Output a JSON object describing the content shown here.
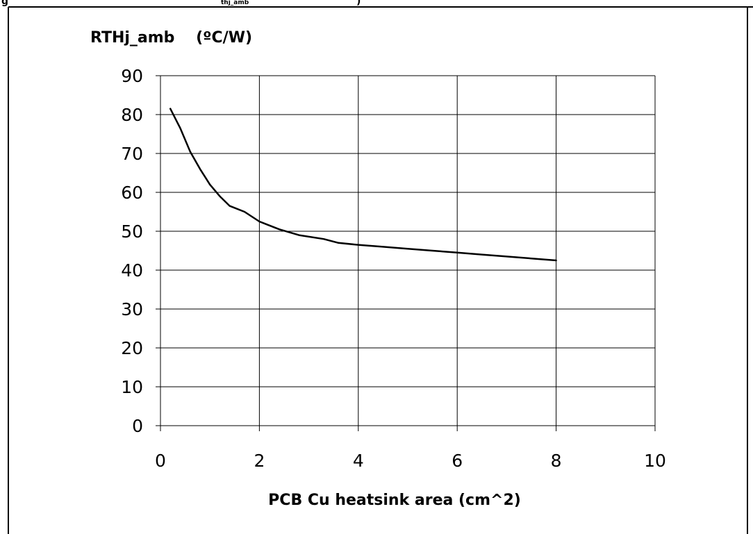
{
  "caption": {
    "prefix": "g",
    "sub": "thj_amb",
    "suffix": ")"
  },
  "chart_data": {
    "type": "line",
    "ylabel": "RTHj_amb    (ºC/W)",
    "xlabel": "PCB Cu heatsink area (cm^2)",
    "xlim": [
      0,
      10
    ],
    "ylim": [
      0,
      90
    ],
    "x_ticks": [
      0,
      2,
      4,
      6,
      8,
      10
    ],
    "y_ticks": [
      0,
      10,
      20,
      30,
      40,
      50,
      60,
      70,
      80,
      90
    ],
    "grid": true,
    "line_color": "#000000",
    "series": [
      {
        "x": [
          0.2,
          0.4,
          0.6,
          0.8,
          1.0,
          1.2,
          1.4,
          1.7,
          2.0,
          2.4,
          2.8,
          3.3,
          3.6,
          4.0,
          4.5,
          5.0,
          5.5,
          6.0,
          6.5,
          7.0,
          7.5,
          8.0
        ],
        "y": [
          81.5,
          76.5,
          70.5,
          66.0,
          62.0,
          59.0,
          56.5,
          55.0,
          52.5,
          50.5,
          49.0,
          48.0,
          47.0,
          46.5,
          46.0,
          45.5,
          45.0,
          44.5,
          44.0,
          43.5,
          43.0,
          42.5
        ]
      }
    ]
  }
}
